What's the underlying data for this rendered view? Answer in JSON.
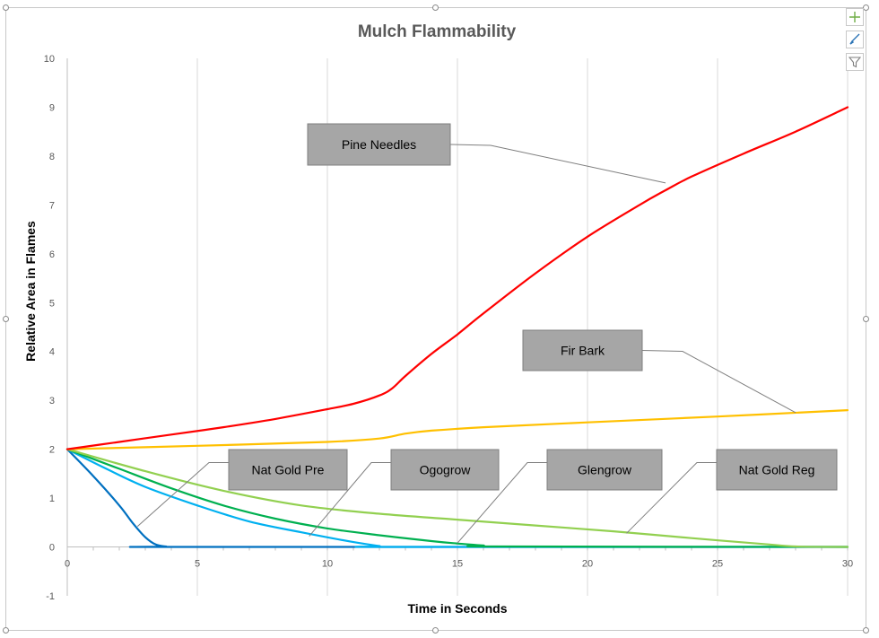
{
  "chart_data": {
    "type": "line",
    "title": "Mulch Flammability",
    "xlabel": "Time in Seconds",
    "ylabel": "Relative Area in Flames",
    "xlim": [
      0,
      30
    ],
    "ylim": [
      -1,
      10
    ],
    "xticks": [
      0,
      5,
      10,
      15,
      20,
      25,
      30
    ],
    "yticks": [
      -1,
      0,
      1,
      2,
      3,
      4,
      5,
      6,
      7,
      8,
      9,
      10
    ],
    "grid": "vertical",
    "legend": "none",
    "series": [
      {
        "name": "Pine Needles",
        "color": "#ff0000",
        "points": [
          [
            0,
            2
          ],
          [
            2,
            2.15
          ],
          [
            4,
            2.3
          ],
          [
            6,
            2.45
          ],
          [
            8,
            2.62
          ],
          [
            10,
            2.82
          ],
          [
            11,
            2.93
          ],
          [
            12,
            3.1
          ],
          [
            12.5,
            3.25
          ],
          [
            13,
            3.5
          ],
          [
            14,
            3.95
          ],
          [
            15,
            4.35
          ],
          [
            16,
            4.78
          ],
          [
            18,
            5.6
          ],
          [
            20,
            6.35
          ],
          [
            22,
            7.0
          ],
          [
            23,
            7.3
          ],
          [
            24,
            7.58
          ],
          [
            26,
            8.05
          ],
          [
            28,
            8.5
          ],
          [
            30,
            9.0
          ]
        ]
      },
      {
        "name": "Fir Bark",
        "color": "#ffc000",
        "points": [
          [
            0,
            2
          ],
          [
            5,
            2.07
          ],
          [
            10,
            2.15
          ],
          [
            12,
            2.22
          ],
          [
            13,
            2.32
          ],
          [
            14,
            2.38
          ],
          [
            16,
            2.45
          ],
          [
            20,
            2.55
          ],
          [
            25,
            2.67
          ],
          [
            30,
            2.8
          ]
        ]
      },
      {
        "name": "Nat Gold Reg",
        "color": "#92d050",
        "points": [
          [
            0,
            2
          ],
          [
            3,
            1.55
          ],
          [
            6,
            1.15
          ],
          [
            9,
            0.85
          ],
          [
            12,
            0.68
          ],
          [
            15,
            0.56
          ],
          [
            18,
            0.44
          ],
          [
            21,
            0.32
          ],
          [
            24,
            0.18
          ],
          [
            27,
            0.05
          ],
          [
            28,
            0.01
          ],
          [
            30,
            0
          ]
        ]
      },
      {
        "name": "Glengrow",
        "color": "#00b050",
        "points": [
          [
            0,
            2
          ],
          [
            2,
            1.6
          ],
          [
            4,
            1.2
          ],
          [
            6,
            0.85
          ],
          [
            8,
            0.58
          ],
          [
            10,
            0.38
          ],
          [
            12,
            0.24
          ],
          [
            14,
            0.12
          ],
          [
            15,
            0.07
          ],
          [
            16,
            0.03
          ],
          [
            16.5,
            0.01
          ],
          [
            30,
            0
          ]
        ]
      },
      {
        "name": "Ogogrow",
        "color": "#00b0f0",
        "points": [
          [
            0,
            2
          ],
          [
            1.5,
            1.6
          ],
          [
            3,
            1.23
          ],
          [
            5,
            0.85
          ],
          [
            7,
            0.52
          ],
          [
            9,
            0.3
          ],
          [
            11,
            0.1
          ],
          [
            12,
            0.02
          ],
          [
            12.5,
            0
          ],
          [
            30,
            0
          ]
        ]
      },
      {
        "name": "Nat Gold Pre",
        "color": "#0070c0",
        "points": [
          [
            0,
            2
          ],
          [
            1,
            1.45
          ],
          [
            2,
            0.85
          ],
          [
            2.5,
            0.5
          ],
          [
            3,
            0.2
          ],
          [
            3.4,
            0.05
          ],
          [
            3.8,
            0.01
          ],
          [
            4.5,
            0
          ],
          [
            30,
            0
          ]
        ]
      }
    ],
    "annotations": [
      {
        "text": "Pine Needles",
        "target": [
          23,
          7.45
        ]
      },
      {
        "text": "Fir Bark",
        "target": [
          28,
          2.75
        ]
      },
      {
        "text": "Nat Gold Pre",
        "target": [
          2.7,
          0.42
        ]
      },
      {
        "text": "Ogogrow",
        "target": [
          9.3,
          0.22
        ]
      },
      {
        "text": "Glengrow",
        "target": [
          15,
          0.08
        ]
      },
      {
        "text": "Nat Gold Reg",
        "target": [
          21.5,
          0.28
        ]
      }
    ],
    "colors": {
      "gridline": "#d9d9d9",
      "axis": "#bfbfbf",
      "tick_text": "#595959",
      "title_text": "#595959",
      "label_box_fill": "#a6a6a6",
      "label_box_border": "#7f7f7f",
      "leader_line": "#7f7f7f"
    }
  },
  "toolbar": {
    "buttons": [
      {
        "icon": "plus-icon",
        "color": "#70ad47"
      },
      {
        "icon": "brush-icon",
        "color": "#2e75b6"
      },
      {
        "icon": "filter-icon",
        "color": "#7f7f7f"
      }
    ]
  }
}
